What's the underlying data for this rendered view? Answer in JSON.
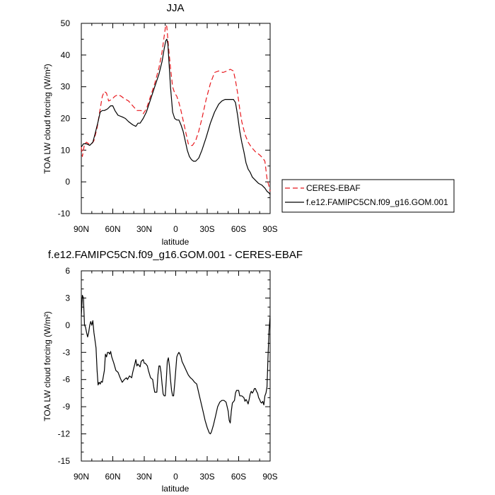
{
  "chart_data": [
    {
      "type": "line",
      "title": "JJA",
      "xlabel": "latitude",
      "ylabel": "TOA LW cloud forcing (W/m²)",
      "xlim": [
        90,
        -90
      ],
      "ylim": [
        -10,
        50
      ],
      "x_ticks": [
        "90N",
        "60N",
        "30N",
        "0",
        "30S",
        "60S",
        "90S"
      ],
      "x_tick_values": [
        90,
        60,
        30,
        0,
        -30,
        -60,
        -90
      ],
      "y_ticks": [
        -10,
        0,
        10,
        20,
        30,
        40,
        50
      ],
      "legend_position": "right",
      "series": [
        {
          "name": "CERES-EBAF",
          "color": "#e8191e",
          "dash": "dashed",
          "points": [
            [
              90,
              11
            ],
            [
              89,
              8
            ],
            [
              87,
              12
            ],
            [
              85,
              12.5
            ],
            [
              83,
              12
            ],
            [
              80,
              12
            ],
            [
              78,
              13
            ],
            [
              75,
              17
            ],
            [
              72,
              23
            ],
            [
              70,
              27
            ],
            [
              68,
              28.5
            ],
            [
              66,
              28
            ],
            [
              64,
              25.5
            ],
            [
              61,
              26
            ],
            [
              58,
              27
            ],
            [
              55,
              27.5
            ],
            [
              52,
              27
            ],
            [
              50,
              26.5
            ],
            [
              45,
              25.5
            ],
            [
              41,
              24
            ],
            [
              37,
              22.5
            ],
            [
              33,
              22.5
            ],
            [
              31,
              21.5
            ],
            [
              28,
              23
            ],
            [
              25,
              26
            ],
            [
              20,
              31
            ],
            [
              16,
              36
            ],
            [
              13,
              41
            ],
            [
              11,
              46
            ],
            [
              9.5,
              49.5
            ],
            [
              8.5,
              49
            ],
            [
              7,
              43
            ],
            [
              5,
              36
            ],
            [
              3,
              30
            ],
            [
              1,
              28
            ],
            [
              -1,
              27
            ],
            [
              -3,
              25
            ],
            [
              -5,
              22.5
            ],
            [
              -8,
              18
            ],
            [
              -10,
              15
            ],
            [
              -12,
              12
            ],
            [
              -14,
              11.5
            ],
            [
              -16,
              11.5
            ],
            [
              -19,
              13
            ],
            [
              -22,
              16
            ],
            [
              -25,
              20
            ],
            [
              -29,
              26
            ],
            [
              -33,
              31
            ],
            [
              -37,
              34.5
            ],
            [
              -41,
              35
            ],
            [
              -45,
              34.5
            ],
            [
              -49,
              35
            ],
            [
              -52,
              35.5
            ],
            [
              -55,
              35
            ],
            [
              -57,
              32
            ],
            [
              -59,
              28
            ],
            [
              -61,
              23
            ],
            [
              -63,
              19
            ],
            [
              -66,
              15
            ],
            [
              -69,
              12.5
            ],
            [
              -72,
              11
            ],
            [
              -76,
              9.5
            ],
            [
              -80,
              8.5
            ],
            [
              -83,
              7.5
            ],
            [
              -85,
              6.5
            ],
            [
              -87,
              1
            ],
            [
              -89,
              -1.5
            ],
            [
              -90,
              -3
            ]
          ]
        },
        {
          "name": "f.e12.FAMIPC5CN.f09_g16.GOM.001",
          "color": "#000000",
          "dash": "solid",
          "points": [
            [
              90,
              11
            ],
            [
              88,
              12
            ],
            [
              85,
              12
            ],
            [
              82,
              11.5
            ],
            [
              79,
              12.5
            ],
            [
              77,
              15
            ],
            [
              74,
              19
            ],
            [
              72,
              22
            ],
            [
              70,
              22.5
            ],
            [
              68,
              22.5
            ],
            [
              65,
              23
            ],
            [
              62,
              24
            ],
            [
              60,
              24
            ],
            [
              58,
              22.5
            ],
            [
              55,
              21
            ],
            [
              51,
              20.5
            ],
            [
              48,
              20
            ],
            [
              45,
              19
            ],
            [
              41,
              18
            ],
            [
              38,
              17.5
            ],
            [
              36,
              18.5
            ],
            [
              34,
              18.5
            ],
            [
              31,
              20
            ],
            [
              28,
              22
            ],
            [
              24,
              26
            ],
            [
              20,
              30
            ],
            [
              16,
              34
            ],
            [
              13,
              38
            ],
            [
              11,
              42
            ],
            [
              9.5,
              44.5
            ],
            [
              8.5,
              45
            ],
            [
              7.5,
              43.5
            ],
            [
              6.5,
              38
            ],
            [
              5,
              30
            ],
            [
              3,
              22
            ],
            [
              1,
              20
            ],
            [
              -1,
              19.5
            ],
            [
              -3,
              19.5
            ],
            [
              -5,
              18
            ],
            [
              -7,
              16
            ],
            [
              -9,
              13
            ],
            [
              -11,
              10
            ],
            [
              -13,
              8
            ],
            [
              -15,
              7
            ],
            [
              -17,
              6.5
            ],
            [
              -19,
              6.5
            ],
            [
              -22,
              7.5
            ],
            [
              -25,
              10
            ],
            [
              -29,
              14
            ],
            [
              -33,
              18.5
            ],
            [
              -37,
              22
            ],
            [
              -41,
              24.5
            ],
            [
              -44,
              25.5
            ],
            [
              -47,
              26
            ],
            [
              -52,
              26
            ],
            [
              -55,
              26
            ],
            [
              -57,
              25
            ],
            [
              -59,
              21
            ],
            [
              -61,
              16
            ],
            [
              -63,
              12.5
            ],
            [
              -65,
              9.5
            ],
            [
              -67,
              6
            ],
            [
              -69,
              4
            ],
            [
              -71,
              3
            ],
            [
              -73,
              1.5
            ],
            [
              -76,
              0.5
            ],
            [
              -79,
              -0.5
            ],
            [
              -82,
              -1
            ],
            [
              -85,
              -2
            ],
            [
              -87,
              -3
            ],
            [
              -89,
              -3.5
            ],
            [
              -90,
              -4
            ]
          ]
        }
      ]
    },
    {
      "type": "line",
      "title": "f.e12.FAMIPC5CN.f09_g16.GOM.001 - CERES-EBAF",
      "xlabel": "latitude",
      "ylabel": "TOA LW cloud forcing (W/m²)",
      "xlim": [
        90,
        -90
      ],
      "ylim": [
        -15,
        6
      ],
      "x_ticks": [
        "90N",
        "60N",
        "30N",
        "0",
        "30S",
        "60S",
        "90S"
      ],
      "x_tick_values": [
        90,
        60,
        30,
        0,
        -30,
        -60,
        -90
      ],
      "y_ticks": [
        -15,
        -12,
        -9,
        -6,
        -3,
        0,
        3,
        6
      ],
      "series": [
        {
          "color": "#000000",
          "dash": "solid",
          "points": [
            [
              90,
              1
            ],
            [
              89,
              3.3
            ],
            [
              88,
              3
            ],
            [
              87,
              0
            ],
            [
              86,
              -0.2
            ],
            [
              85,
              -0.8
            ],
            [
              84,
              -1.3
            ],
            [
              83,
              -0.8
            ],
            [
              82,
              0
            ],
            [
              81,
              0.4
            ],
            [
              80,
              0
            ],
            [
              79,
              0.5
            ],
            [
              78,
              -0.8
            ],
            [
              76,
              -2.5
            ],
            [
              75,
              -5
            ],
            [
              74,
              -6.6
            ],
            [
              73,
              -6.3
            ],
            [
              72,
              -6.5
            ],
            [
              71,
              -6.2
            ],
            [
              70,
              -6.3
            ],
            [
              68,
              -5
            ],
            [
              67,
              -3.2
            ],
            [
              66,
              -3.5
            ],
            [
              65,
              -3
            ],
            [
              64,
              -3
            ],
            [
              63,
              -3.2
            ],
            [
              62,
              -2.9
            ],
            [
              61,
              -3.5
            ],
            [
              59,
              -4.2
            ],
            [
              57,
              -5
            ],
            [
              55,
              -5.2
            ],
            [
              53,
              -5.8
            ],
            [
              51,
              -6.3
            ],
            [
              49,
              -6
            ],
            [
              47,
              -5.8
            ],
            [
              46,
              -6
            ],
            [
              44,
              -5.6
            ],
            [
              42,
              -5.8
            ],
            [
              41,
              -5.2
            ],
            [
              39,
              -4.3
            ],
            [
              38,
              -3.8
            ],
            [
              37,
              -4.5
            ],
            [
              36,
              -4.3
            ],
            [
              34,
              -4.6
            ],
            [
              33,
              -4
            ],
            [
              31,
              -3.8
            ],
            [
              30,
              -4.2
            ],
            [
              29,
              -4.2
            ],
            [
              27,
              -4.5
            ],
            [
              26,
              -5
            ],
            [
              24,
              -5.8
            ],
            [
              22,
              -6
            ],
            [
              21,
              -6.8
            ],
            [
              20,
              -7.4
            ],
            [
              18,
              -7.4
            ],
            [
              17,
              -5.5
            ],
            [
              16,
              -4.5
            ],
            [
              15,
              -4.5
            ],
            [
              14,
              -5.2
            ],
            [
              13,
              -6.5
            ],
            [
              12,
              -7.6
            ],
            [
              11,
              -7.8
            ],
            [
              10,
              -7.8
            ],
            [
              9,
              -6
            ],
            [
              8,
              -4
            ],
            [
              7,
              -3.6
            ],
            [
              6,
              -4.5
            ],
            [
              5,
              -6
            ],
            [
              4,
              -7.2
            ],
            [
              3,
              -7.8
            ],
            [
              2,
              -7.8
            ],
            [
              1,
              -6.5
            ],
            [
              0,
              -5
            ],
            [
              -1,
              -3.5
            ],
            [
              -2,
              -3.2
            ],
            [
              -3,
              -3
            ],
            [
              -4,
              -3.2
            ],
            [
              -5,
              -3.5
            ],
            [
              -6,
              -4
            ],
            [
              -8,
              -4.5
            ],
            [
              -10,
              -5
            ],
            [
              -12,
              -5.5
            ],
            [
              -14,
              -5.8
            ],
            [
              -16,
              -6
            ],
            [
              -18,
              -6.3
            ],
            [
              -20,
              -6.5
            ],
            [
              -22,
              -7.5
            ],
            [
              -24,
              -8.5
            ],
            [
              -26,
              -9.5
            ],
            [
              -28,
              -10.5
            ],
            [
              -30,
              -11.3
            ],
            [
              -32,
              -11.9
            ],
            [
              -33,
              -12
            ],
            [
              -34,
              -11.8
            ],
            [
              -36,
              -11
            ],
            [
              -38,
              -10
            ],
            [
              -40,
              -9
            ],
            [
              -42,
              -8.5
            ],
            [
              -44,
              -8.3
            ],
            [
              -46,
              -8.3
            ],
            [
              -48,
              -8.5
            ],
            [
              -50,
              -9.5
            ],
            [
              -51,
              -10.5
            ],
            [
              -52,
              -10.8
            ],
            [
              -53,
              -9.5
            ],
            [
              -54,
              -8.6
            ],
            [
              -56,
              -8.3
            ],
            [
              -57,
              -7.5
            ],
            [
              -58,
              -7.2
            ],
            [
              -60,
              -7.2
            ],
            [
              -61,
              -7.8
            ],
            [
              -63,
              -7.8
            ],
            [
              -65,
              -8
            ],
            [
              -66,
              -8.4
            ],
            [
              -67,
              -8.2
            ],
            [
              -68,
              -8.4
            ],
            [
              -69,
              -8.7
            ],
            [
              -70,
              -8.2
            ],
            [
              -71,
              -7.6
            ],
            [
              -72,
              -7.3
            ],
            [
              -73,
              -7.5
            ],
            [
              -74,
              -7.3
            ],
            [
              -75,
              -7
            ],
            [
              -76,
              -7
            ],
            [
              -77,
              -7.3
            ],
            [
              -78,
              -7.5
            ],
            [
              -79,
              -8
            ],
            [
              -80,
              -8.2
            ],
            [
              -81,
              -8.5
            ],
            [
              -82,
              -8.6
            ],
            [
              -83,
              -8.4
            ],
            [
              -84,
              -8.8
            ],
            [
              -85,
              -7.8
            ],
            [
              -86,
              -7.5
            ],
            [
              -87,
              -6.8
            ],
            [
              -88,
              -3.5
            ],
            [
              -89,
              -0.5
            ],
            [
              -90,
              1
            ]
          ]
        }
      ]
    }
  ]
}
